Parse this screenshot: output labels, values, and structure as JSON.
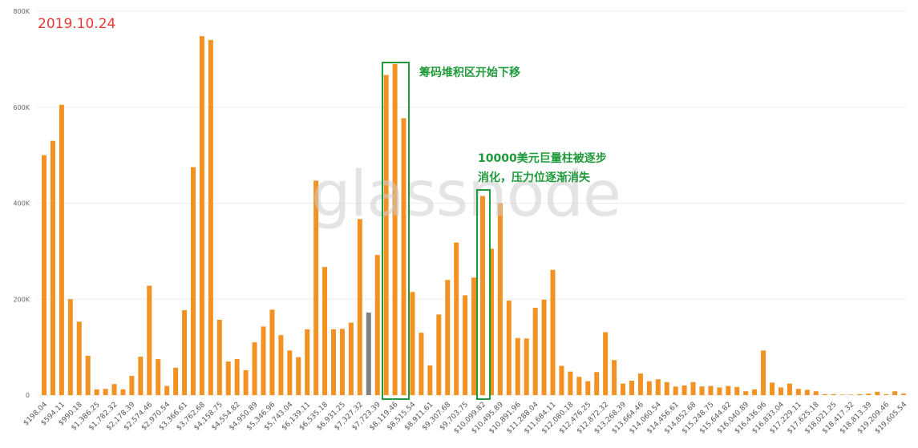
{
  "date_stamp": "2019.10.24",
  "watermark": "glassnode",
  "annotations": {
    "top_label": "筹码堆积区开始下移",
    "mid_label_line1": "10000美元巨量柱被逐步",
    "mid_label_line2": "消化，压力位逐渐消失"
  },
  "colors": {
    "bar": "#f29223",
    "bar_highlight": "#808080",
    "annotation": "#1f9a3a",
    "date": "#e53935",
    "grid": "#eeeeee"
  },
  "chart_data": {
    "type": "bar",
    "y_tick_labels": [
      "0",
      "200K",
      "400K",
      "600K",
      "800K"
    ],
    "ylim": [
      0,
      800000
    ],
    "x_tick_labels": [
      "$198.04",
      "$594.11",
      "$990.18",
      "$1,386.25",
      "$1,782.32",
      "$2,178.39",
      "$2,574.46",
      "$2,970.54",
      "$3,366.61",
      "$3,762.68",
      "$4,158.75",
      "$4,554.82",
      "$4,950.89",
      "$5,346.96",
      "$5,743.04",
      "$6,139.11",
      "$6,535.18",
      "$6,931.25",
      "$7,327.32",
      "$7,723.39",
      "$8,119.46",
      "$8,515.54",
      "$8,911.61",
      "$9,307.68",
      "$9,703.75",
      "$10,099.82",
      "$10,495.89",
      "$10,891.96",
      "$11,288.04",
      "$11,684.11",
      "$12,080.18",
      "$12,476.25",
      "$12,872.32",
      "$13,268.39",
      "$13,664.46",
      "$14,060.54",
      "$14,456.61",
      "$14,852.68",
      "$15,248.75",
      "$15,644.82",
      "$16,040.89",
      "$16,436.96",
      "$16,833.04",
      "$17,229.11",
      "$17,625.18",
      "$18,021.25",
      "$18,417.32",
      "$18,813.39",
      "$19,209.46",
      "$19,605.54"
    ],
    "values": [
      500000,
      530000,
      605000,
      200000,
      153000,
      82000,
      12000,
      13000,
      23000,
      12000,
      40000,
      80000,
      228000,
      75000,
      19000,
      57000,
      177000,
      475000,
      748000,
      740000,
      157000,
      70000,
      75000,
      52000,
      110000,
      143000,
      178000,
      125000,
      93000,
      79000,
      137000,
      447000,
      267000,
      137000,
      138000,
      151000,
      367000,
      172000,
      292000,
      667000,
      690000,
      577000,
      215000,
      130000,
      62000,
      168000,
      240000,
      318000,
      208000,
      245000,
      415000,
      305000,
      400000,
      197000,
      119000,
      118000,
      182000,
      199000,
      261000,
      61000,
      49000,
      38000,
      29000,
      48000,
      131000,
      73000,
      24000,
      30000,
      45000,
      29000,
      33000,
      27000,
      18000,
      20000,
      27000,
      18000,
      19000,
      16000,
      19000,
      17000,
      8000,
      12000,
      93000,
      26000,
      16000,
      24000,
      13000,
      11000,
      8000,
      2000,
      2000,
      1000,
      1000,
      2000,
      3000,
      7000,
      2000,
      8000,
      3000
    ],
    "highlight_index": 37
  }
}
